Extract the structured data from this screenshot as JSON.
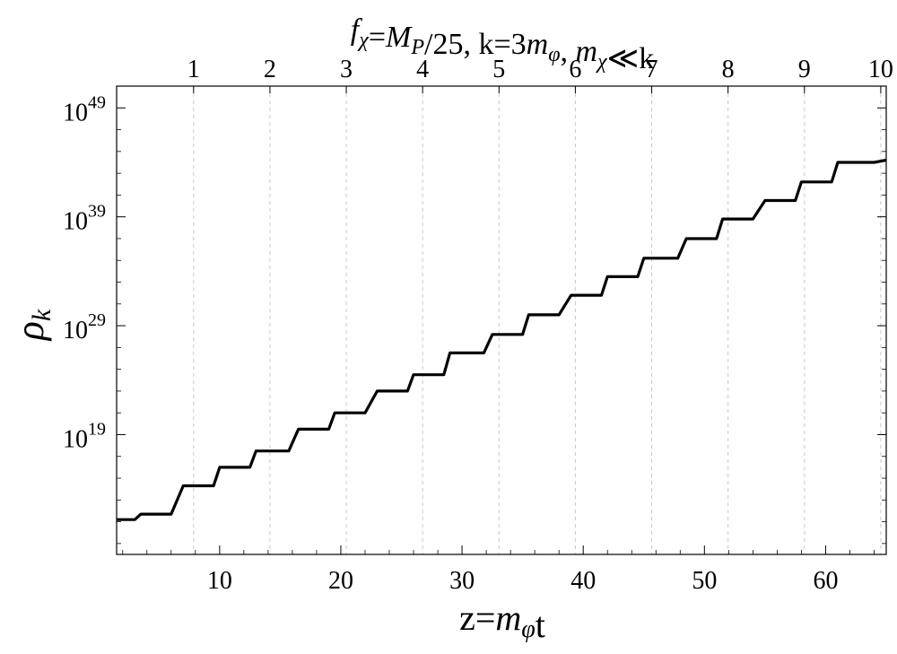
{
  "chart_data": {
    "type": "line",
    "title": "fχ=MP/25, k=3mφ, mχ≪k",
    "title_parts": [
      {
        "t": "f",
        "style": "italic"
      },
      {
        "t": "χ",
        "style": "italic-sub"
      },
      {
        "t": "=",
        "style": "normal"
      },
      {
        "t": "M",
        "style": "italic"
      },
      {
        "t": "P",
        "style": "italic-sub"
      },
      {
        "t": "/25, k=3",
        "style": "normal"
      },
      {
        "t": "m",
        "style": "italic"
      },
      {
        "t": "φ",
        "style": "italic-sub"
      },
      {
        "t": ", ",
        "style": "normal"
      },
      {
        "t": "m",
        "style": "italic"
      },
      {
        "t": "χ",
        "style": "italic-sub"
      },
      {
        "t": "≪k",
        "style": "normal"
      }
    ],
    "xlabel": "z=mφt",
    "xlabel_parts": [
      {
        "t": "z=",
        "style": "normal"
      },
      {
        "t": "m",
        "style": "italic"
      },
      {
        "t": "φ",
        "style": "italic-sub"
      },
      {
        "t": "t",
        "style": "normal"
      }
    ],
    "ylabel": "ρk",
    "ylabel_parts": [
      {
        "t": "ρ",
        "style": "italic"
      },
      {
        "t": "k",
        "style": "italic-sub"
      }
    ],
    "xlim": [
      1.5,
      65
    ],
    "ylog10_lim": [
      8,
      51
    ],
    "y_scale": "log",
    "x_ticks": [
      10,
      20,
      30,
      40,
      50,
      60
    ],
    "x_tick_labels": [
      "10",
      "20",
      "30",
      "40",
      "50",
      "60"
    ],
    "y_tick_exponents": [
      19,
      29,
      39,
      49
    ],
    "y_tick_base": "10",
    "top_axis_ticks": [
      "1",
      "2",
      "3",
      "4",
      "5",
      "6",
      "7",
      "8",
      "9",
      "10"
    ],
    "top_axis_ticks_in_z": [
      7.85,
      14.15,
      20.45,
      26.75,
      33.05,
      39.35,
      45.65,
      51.95,
      58.25,
      64.55
    ],
    "gridlines": "vertical dashed at top-axis ticks",
    "series": [
      {
        "color": "#000000",
        "x": [
          1.5,
          3.0,
          3.5,
          6.0,
          7.0,
          9.5,
          10.0,
          12.5,
          13.0,
          15.7,
          16.5,
          19.0,
          19.5,
          22.0,
          23.0,
          25.5,
          26.0,
          28.5,
          29.0,
          31.8,
          32.5,
          35.0,
          35.5,
          38.0,
          39.0,
          41.5,
          42.0,
          44.5,
          45.0,
          47.8,
          48.5,
          51.0,
          51.5,
          54.0,
          55.0,
          57.5,
          58.0,
          60.5,
          61.0,
          64.0,
          65.0
        ],
        "log10_y": [
          11.2,
          11.2,
          11.7,
          11.7,
          14.3,
          14.3,
          16.0,
          16.0,
          17.5,
          17.5,
          19.5,
          19.5,
          21.0,
          21.0,
          23.0,
          23.0,
          24.5,
          24.5,
          26.5,
          26.5,
          28.2,
          28.2,
          30.0,
          30.0,
          31.8,
          31.8,
          33.5,
          33.5,
          35.2,
          35.2,
          37.0,
          37.0,
          38.8,
          38.8,
          40.5,
          40.5,
          42.2,
          42.2,
          44.0,
          44.0,
          44.2
        ]
      }
    ]
  }
}
